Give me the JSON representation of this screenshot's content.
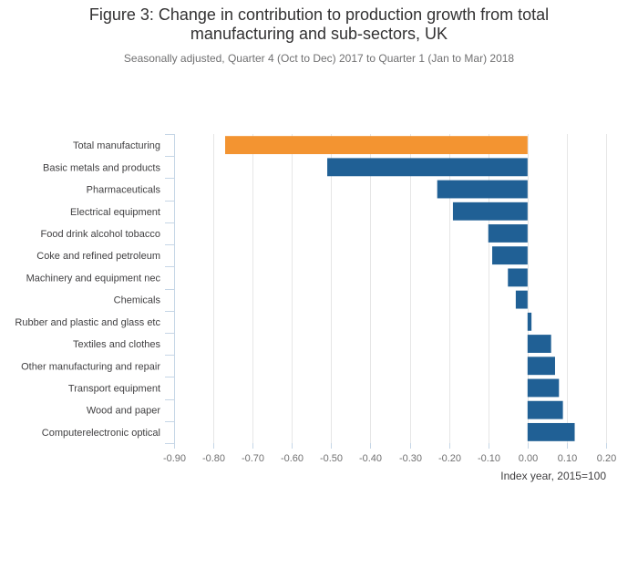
{
  "chart_data": {
    "type": "bar",
    "orientation": "horizontal",
    "title_lines": [
      "Figure 3: Change in contribution to production growth from total",
      "manufacturing and sub-sectors, UK"
    ],
    "subtitle": "Seasonally adjusted, Quarter 4 (Oct to Dec) 2017 to Quarter 1 (Jan to Mar) 2018",
    "xlabel": "Index year, 2015=100",
    "ylabel": "",
    "xlim": [
      -0.9,
      0.2
    ],
    "grid": true,
    "x_ticks": [
      -0.9,
      -0.8,
      -0.7,
      -0.6,
      -0.5,
      -0.4,
      -0.3,
      -0.2,
      -0.1,
      0.0,
      0.1,
      0.2
    ],
    "x_tick_labels": [
      "-0.90",
      "-0.80",
      "-0.70",
      "-0.60",
      "-0.50",
      "-0.40",
      "-0.30",
      "-0.20",
      "-0.10",
      "0.00",
      "0.10",
      "0.20"
    ],
    "categories": [
      "Total manufacturing",
      "Basic metals and products",
      "Pharmaceuticals",
      "Electrical equipment",
      "Food drink alcohol tobacco",
      "Coke and refined petroleum",
      "Machinery and equipment nec",
      "Chemicals",
      "Rubber and plastic and glass etc",
      "Textiles and clothes",
      "Other manufacturing and repair",
      "Transport equipment",
      "Wood and paper",
      "Computerelectronic optical"
    ],
    "values": [
      -0.77,
      -0.51,
      -0.23,
      -0.19,
      -0.1,
      -0.09,
      -0.05,
      -0.03,
      0.01,
      0.06,
      0.07,
      0.08,
      0.09,
      0.12
    ],
    "bar_colors": [
      "#f39431",
      "#206095",
      "#206095",
      "#206095",
      "#206095",
      "#206095",
      "#206095",
      "#206095",
      "#206095",
      "#206095",
      "#206095",
      "#206095",
      "#206095",
      "#206095"
    ],
    "colors": {
      "highlight": "#f39431",
      "series": "#206095",
      "grid": "#e6e6e6",
      "axis": "#c6d6e6"
    }
  }
}
